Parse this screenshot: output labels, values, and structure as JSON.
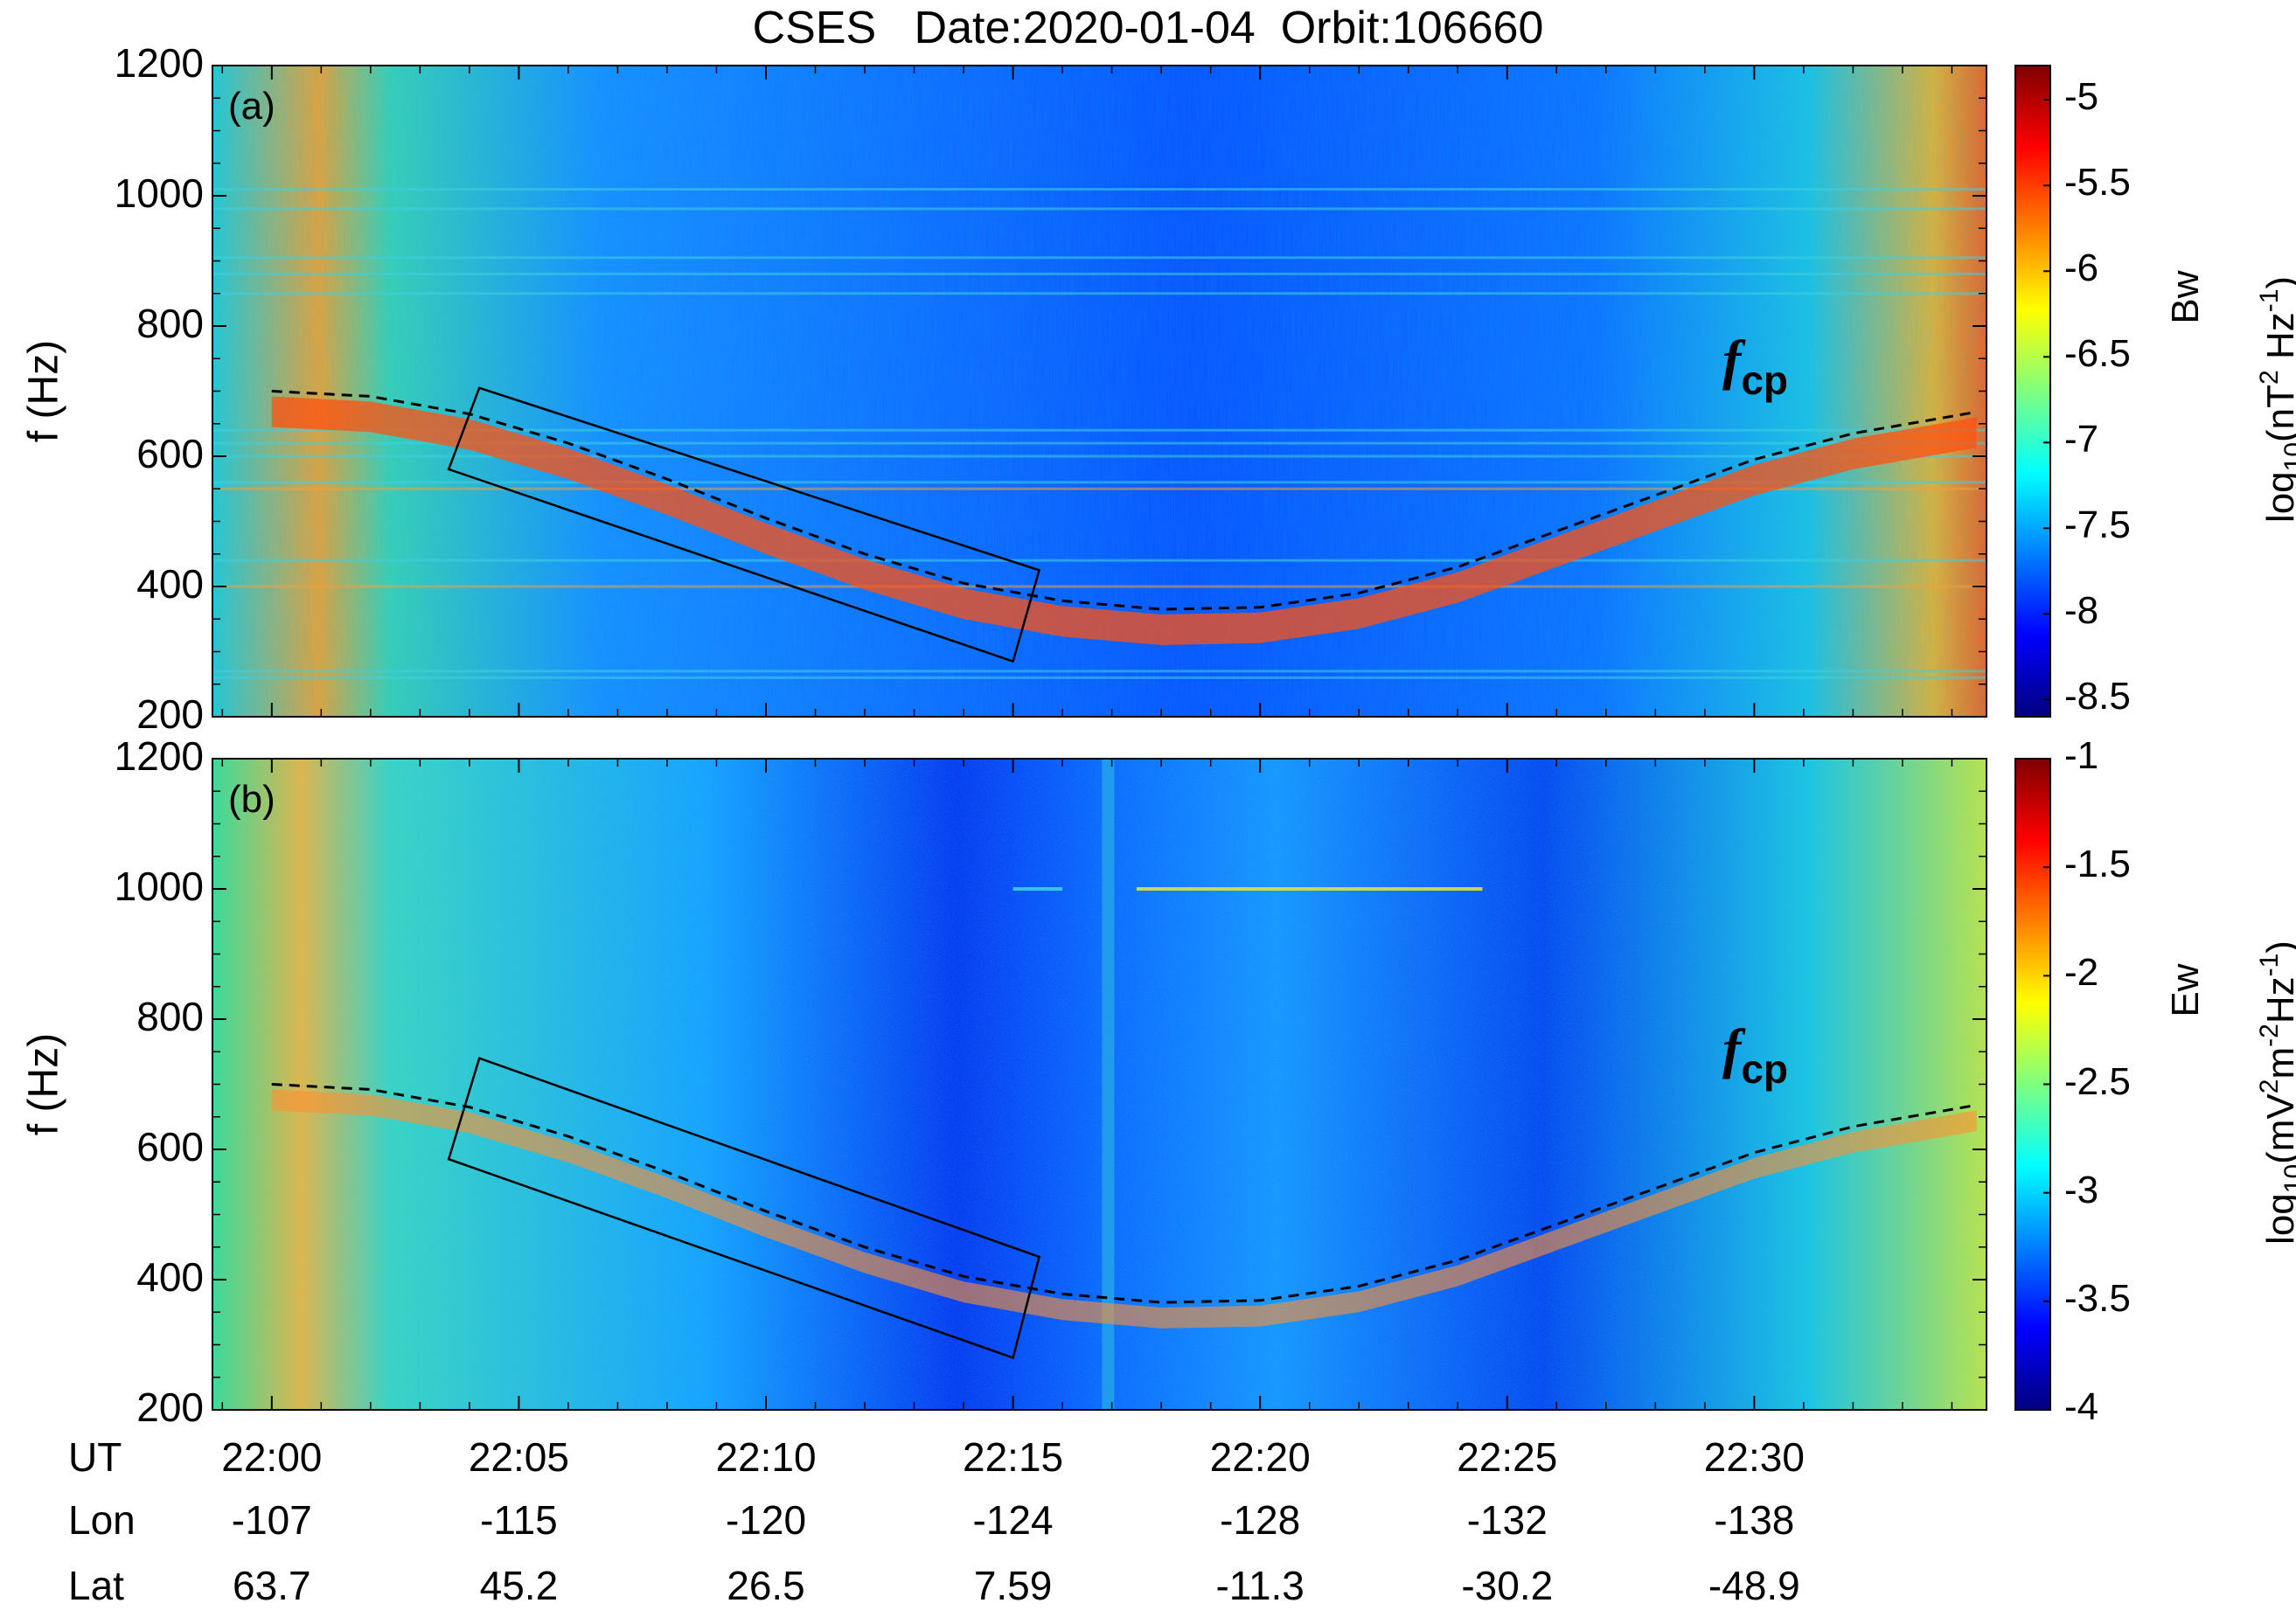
{
  "figure_title": "CSES   Date:2020-01-04  Orbit:106660",
  "colors": {
    "colormap": [
      "#00007f",
      "#0000ff",
      "#007fff",
      "#00ffff",
      "#7fff7f",
      "#ffff00",
      "#ff7f00",
      "#ff0000",
      "#7f0000"
    ],
    "fcp_curve": "#000000",
    "box": "#000000"
  },
  "chart_data": [
    {
      "type": "heatmap",
      "panel_label": "(a)",
      "title": "CSES   Date:2020-01-04  Orbit:106660",
      "ylabel": "f (Hz)",
      "ylim": [
        200,
        1200
      ],
      "yticks": [
        200,
        400,
        600,
        800,
        1000,
        1200
      ],
      "xlim_minutes": [
        -1.2,
        34.7
      ],
      "annotation": "f",
      "annotation_sub": "cp",
      "colorbar": {
        "variable": "Bw",
        "label_main": "log",
        "label_sub": "10",
        "label_rest": "(nT",
        "label_sup1": "2",
        "label_mid": " Hz",
        "label_sup2": "-1",
        "label_end": ")",
        "range": [
          -8.6,
          -4.8
        ],
        "ticks": [
          "-5",
          "-5.5",
          "-6",
          "-6.5",
          "-7",
          "-7.5",
          "-8",
          "-8.5"
        ],
        "tick_values": [
          -5,
          -5.5,
          -6,
          -6.5,
          -7,
          -7.5,
          -8,
          -8.5
        ]
      },
      "fcp_curve": {
        "style": "dashed",
        "minute_offsets": [
          0,
          2,
          4,
          6,
          8,
          10,
          12,
          14,
          16,
          18,
          20,
          22,
          24,
          26,
          28,
          30,
          32,
          34.5
        ],
        "frequency_hz": [
          700,
          692,
          665,
          620,
          565,
          505,
          450,
          405,
          378,
          365,
          368,
          390,
          430,
          485,
          540,
          595,
          635,
          668
        ]
      },
      "highlight_box": {
        "t_start_min": 4.2,
        "t_end_min": 15.0,
        "f_top_start": 705,
        "f_top_end": 425,
        "f_bottom_start": 580,
        "f_bottom_end": 285
      }
    },
    {
      "type": "heatmap",
      "panel_label": "(b)",
      "ylabel": "f (Hz)",
      "ylim": [
        200,
        1200
      ],
      "yticks": [
        200,
        400,
        600,
        800,
        1000,
        1200
      ],
      "xlim_minutes": [
        -1.2,
        34.7
      ],
      "annotation": "f",
      "annotation_sub": "cp",
      "colorbar": {
        "variable": "Ew",
        "label_main": "log",
        "label_sub": "10",
        "label_rest": "(mV",
        "label_sup1": "2",
        "label_mid": "m",
        "label_sup2": "-2",
        "label_hz": "Hz",
        "label_sup3": "-1",
        "label_end": ")",
        "range": [
          -4,
          -1
        ],
        "ticks": [
          "-1",
          "-1.5",
          "-2",
          "-2.5",
          "-3",
          "-3.5",
          "-4"
        ],
        "tick_values": [
          -1,
          -1.5,
          -2,
          -2.5,
          -3,
          -3.5,
          -4
        ]
      },
      "fcp_curve": {
        "style": "dashed",
        "minute_offsets": [
          0,
          2,
          4,
          6,
          8,
          10,
          12,
          14,
          16,
          18,
          20,
          22,
          24,
          26,
          28,
          30,
          32,
          34.5
        ],
        "frequency_hz": [
          700,
          692,
          665,
          620,
          565,
          505,
          450,
          405,
          378,
          365,
          368,
          390,
          430,
          485,
          540,
          595,
          635,
          668
        ]
      },
      "highlight_box": {
        "t_start_min": 4.2,
        "t_end_min": 15.0,
        "f_top_start": 740,
        "f_top_end": 435,
        "f_bottom_start": 585,
        "f_bottom_end": 280
      }
    }
  ],
  "x_axis_rows": [
    {
      "label": "UT",
      "values": [
        "22:00",
        "22:05",
        "22:10",
        "22:15",
        "22:20",
        "22:25",
        "22:30"
      ]
    },
    {
      "label": "Lon",
      "values": [
        "-107",
        "-115",
        "-120",
        "-124",
        "-128",
        "-132",
        "-138"
      ]
    },
    {
      "label": "Lat",
      "values": [
        "63.7",
        "45.2",
        "26.5",
        "7.59",
        "-11.3",
        "-30.2",
        "-48.9"
      ]
    }
  ],
  "x_tick_minutes": [
    0,
    5,
    10,
    15,
    20,
    25,
    30
  ]
}
